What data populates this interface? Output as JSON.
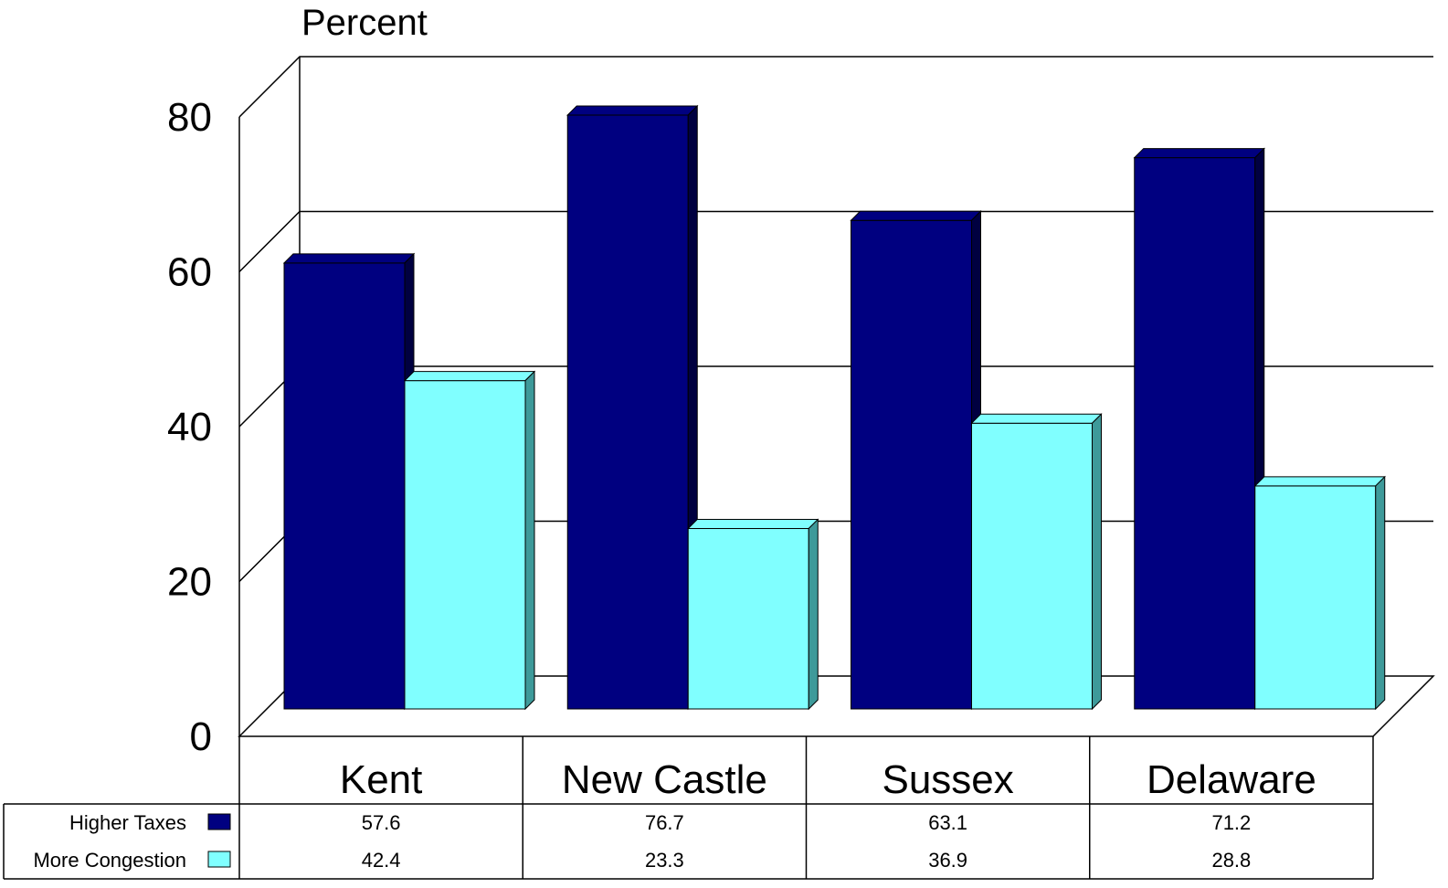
{
  "chart_data": {
    "type": "bar",
    "ylabel": "Percent",
    "ylim": [
      0,
      80
    ],
    "yticks": [
      0,
      20,
      40,
      60,
      80
    ],
    "categories": [
      "Kent",
      "New Castle",
      "Sussex",
      "Delaware"
    ],
    "series": [
      {
        "name": "Higher Taxes",
        "values": [
          57.6,
          76.7,
          63.1,
          71.2
        ],
        "color": "#000080",
        "shade": "#000040"
      },
      {
        "name": "More Congestion",
        "values": [
          42.4,
          23.3,
          36.9,
          28.8
        ],
        "color": "#80FFFF",
        "shade": "#3E9A9A"
      }
    ],
    "value_labels": [
      [
        "57.6",
        "76.7",
        "63.1",
        "71.2"
      ],
      [
        "42.4",
        "23.3",
        "36.9",
        "28.8"
      ]
    ],
    "grid": true,
    "three_d": true,
    "data_table": true
  }
}
